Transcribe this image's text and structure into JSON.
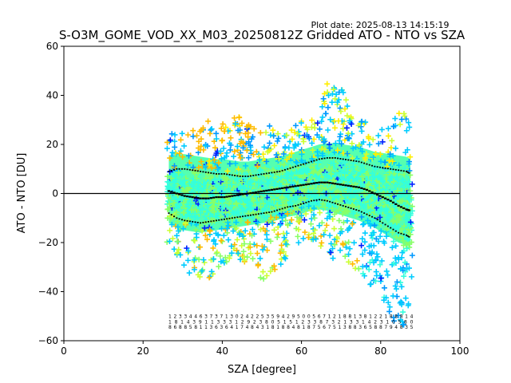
{
  "plot_date": "Plot date: 2025-08-13 14:15:19",
  "chart_data": {
    "type": "scatter",
    "title": "S-O3M_GOME_VOD_XX_M03_20250812Z Gridded ATO - NTO vs SZA",
    "xlabel": "SZA [degree]",
    "ylabel": "ATO - NTO [DU]",
    "xlim": [
      0,
      100
    ],
    "ylim": [
      -60,
      60
    ],
    "xticks": [
      0,
      20,
      40,
      60,
      80,
      100
    ],
    "yticks": [
      -60,
      -40,
      -20,
      0,
      20,
      40,
      60
    ],
    "grid": false,
    "zero_line": 0,
    "marker": "+",
    "colors": [
      "#0022ff",
      "#0099ff",
      "#00ccff",
      "#33ffdd",
      "#88ff66",
      "#ccff33",
      "#ffee00",
      "#ffbb00"
    ],
    "sza_bins": [
      26.5,
      28.5,
      30.5,
      32.5,
      34.5,
      36.5,
      38.5,
      40.5,
      42.5,
      44.5,
      46.5,
      48.5,
      50.5,
      52.5,
      54.5,
      56.5,
      58.5,
      60.5,
      62.5,
      64.5,
      66.5,
      68.5,
      70.5,
      72.5,
      74.5,
      76.5,
      78.5,
      80.5,
      82.5,
      84.5,
      86.5,
      87.5
    ],
    "scatter_upper": [
      24,
      25,
      26,
      27,
      28,
      30,
      29,
      30,
      31,
      32,
      30,
      28,
      27,
      28,
      28,
      29,
      29,
      30,
      31,
      30,
      50,
      45,
      42,
      35,
      30,
      30,
      29,
      28,
      28,
      33,
      38,
      38
    ],
    "scatter_lower": [
      -20,
      -25,
      -32,
      -33,
      -35,
      -35,
      -33,
      -30,
      -27,
      -28,
      -28,
      -30,
      -38,
      -34,
      -30,
      -28,
      -22,
      -20,
      -20,
      -22,
      -25,
      -27,
      -30,
      -30,
      -32,
      -35,
      -40,
      -45,
      -50,
      -55,
      -58,
      -48
    ],
    "series": [
      {
        "name": "median",
        "x": [
          26.5,
          28.5,
          30.5,
          32.5,
          34.5,
          36.5,
          38.5,
          40.5,
          42.5,
          44.5,
          46.5,
          48.5,
          50.5,
          52.5,
          54.5,
          56.5,
          58.5,
          60.5,
          62.5,
          64.5,
          66.5,
          68.5,
          70.5,
          72.5,
          74.5,
          76.5,
          78.5,
          80.5,
          82.5,
          84.5,
          86.5,
          87.5
        ],
        "y": [
          1,
          0,
          -1,
          -1.5,
          -2,
          -2,
          -1.5,
          -1.5,
          -1,
          -0.5,
          0,
          0.5,
          1,
          1.5,
          2,
          2.5,
          3,
          3.5,
          4,
          4.5,
          4.5,
          4,
          3.5,
          3,
          2.5,
          1.5,
          0,
          -1.5,
          -3,
          -5,
          -6.5,
          -7
        ]
      },
      {
        "name": "upper",
        "x": [
          26.5,
          28.5,
          30.5,
          32.5,
          34.5,
          36.5,
          38.5,
          40.5,
          42.5,
          44.5,
          46.5,
          48.5,
          50.5,
          52.5,
          54.5,
          56.5,
          58.5,
          60.5,
          62.5,
          64.5,
          66.5,
          68.5,
          70.5,
          72.5,
          74.5,
          76.5,
          78.5,
          80.5,
          82.5,
          84.5,
          86.5,
          87.5
        ],
        "y": [
          9,
          10,
          10,
          9.5,
          9,
          8.5,
          8,
          8,
          7.5,
          7,
          7,
          7.5,
          8,
          8.5,
          9,
          10,
          11,
          12,
          13,
          14,
          14.5,
          14.5,
          14,
          13.5,
          13,
          12,
          11,
          10.5,
          10,
          9.5,
          9,
          8
        ]
      },
      {
        "name": "lower",
        "x": [
          26.5,
          28.5,
          30.5,
          32.5,
          34.5,
          36.5,
          38.5,
          40.5,
          42.5,
          44.5,
          46.5,
          48.5,
          50.5,
          52.5,
          54.5,
          56.5,
          58.5,
          60.5,
          62.5,
          64.5,
          66.5,
          68.5,
          70.5,
          72.5,
          74.5,
          76.5,
          78.5,
          80.5,
          82.5,
          84.5,
          86.5,
          87.5
        ],
        "y": [
          -8,
          -10,
          -11,
          -11.5,
          -12,
          -11.5,
          -11,
          -10.5,
          -10,
          -9.5,
          -9,
          -8.5,
          -8,
          -7.5,
          -6.5,
          -5.5,
          -5,
          -4,
          -3,
          -2.5,
          -3,
          -4,
          -5,
          -6,
          -7,
          -8.5,
          -10,
          -12,
          -14,
          -16,
          -17,
          -18
        ]
      }
    ],
    "count_labels": {
      "row1": [
        "1",
        "2",
        "3",
        "3",
        "4",
        "4",
        "6",
        "3",
        "7",
        "3",
        "7",
        "1",
        "3",
        "0",
        "2",
        "4",
        "2",
        "2",
        "5",
        "3",
        "5",
        "9",
        "4",
        "2",
        "9",
        "5",
        "0",
        "0",
        "5",
        "6",
        "7",
        "1",
        "2",
        "1",
        "8",
        "8",
        "1",
        "3",
        "8",
        "1",
        "2",
        "2",
        "1",
        "8",
        "8",
        "8",
        "1",
        "4"
      ],
      "row2": [
        "1",
        "8",
        "1",
        "4",
        "3",
        "9",
        "1",
        "1",
        "3",
        "3",
        "3",
        "1",
        "2",
        "9",
        "2",
        "3",
        "8",
        "0",
        "5",
        "1",
        "5",
        "1",
        "2",
        "3",
        "3",
        "8",
        "7",
        "3",
        "2",
        "1",
        "3",
        "3",
        "1",
        "4",
        "2",
        "3",
        "1",
        "0",
        "5",
        "8",
        "0"
      ],
      "row3": [
        "8",
        "6",
        "8",
        "8",
        "5",
        "8",
        "1",
        "1",
        "3",
        "6",
        "3",
        "6",
        "4",
        "1",
        "7",
        "4",
        "8",
        "4",
        "3",
        "1",
        "8",
        "1",
        "8",
        "8",
        "4",
        "8",
        "1",
        "8",
        "7",
        "5",
        "6",
        "7",
        "5",
        "1",
        "3",
        "8",
        "8",
        "3",
        "6",
        "5",
        "8",
        "8",
        "7",
        "9",
        "4",
        "8",
        "3",
        "5"
      ]
    }
  }
}
